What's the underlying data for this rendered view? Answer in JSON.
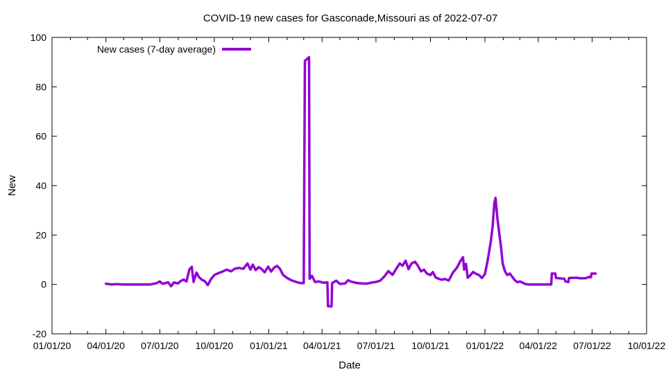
{
  "chart_data": {
    "type": "line",
    "title": "COVID-19 new cases for Gasconade,Missouri as of 2022-07-07",
    "xlabel": "Date",
    "ylabel": "New",
    "xlim": [
      "2020-01-01",
      "2022-10-01"
    ],
    "ylim": [
      -20,
      100
    ],
    "x_ticks": [
      "01/01/20",
      "04/01/20",
      "07/01/20",
      "10/01/20",
      "01/01/21",
      "04/01/21",
      "07/01/21",
      "10/01/21",
      "01/01/22",
      "04/01/22",
      "07/01/22",
      "10/01/22"
    ],
    "y_ticks": [
      -20,
      0,
      20,
      40,
      60,
      80,
      100
    ],
    "grid": false,
    "legend_position": "top-left",
    "color": "#9400d3",
    "series": [
      {
        "name": "New cases (7-day average)",
        "points": [
          [
            "2020-04-01",
            0.3
          ],
          [
            "2020-04-10",
            0.0
          ],
          [
            "2020-04-20",
            0.1
          ],
          [
            "2020-05-01",
            0.0
          ],
          [
            "2020-05-15",
            0.0
          ],
          [
            "2020-06-01",
            0.0
          ],
          [
            "2020-06-15",
            0.0
          ],
          [
            "2020-06-25",
            0.5
          ],
          [
            "2020-07-01",
            1.2
          ],
          [
            "2020-07-05",
            0.3
          ],
          [
            "2020-07-10",
            0.5
          ],
          [
            "2020-07-15",
            0.9
          ],
          [
            "2020-07-20",
            -0.7
          ],
          [
            "2020-07-25",
            0.8
          ],
          [
            "2020-08-01",
            0.4
          ],
          [
            "2020-08-05",
            1.3
          ],
          [
            "2020-08-10",
            2.0
          ],
          [
            "2020-08-15",
            1.2
          ],
          [
            "2020-08-20",
            6.1
          ],
          [
            "2020-08-24",
            7.1
          ],
          [
            "2020-08-27",
            1.0
          ],
          [
            "2020-09-01",
            4.8
          ],
          [
            "2020-09-05",
            3.0
          ],
          [
            "2020-09-10",
            1.9
          ],
          [
            "2020-09-15",
            1.3
          ],
          [
            "2020-09-20",
            -0.3
          ],
          [
            "2020-09-25",
            2.0
          ],
          [
            "2020-10-01",
            3.8
          ],
          [
            "2020-10-08",
            4.6
          ],
          [
            "2020-10-15",
            5.2
          ],
          [
            "2020-10-22",
            6.0
          ],
          [
            "2020-10-29",
            5.3
          ],
          [
            "2020-11-05",
            6.4
          ],
          [
            "2020-11-12",
            6.7
          ],
          [
            "2020-11-19",
            6.3
          ],
          [
            "2020-11-26",
            8.5
          ],
          [
            "2020-12-01",
            6.0
          ],
          [
            "2020-12-05",
            8.0
          ],
          [
            "2020-12-10",
            5.8
          ],
          [
            "2020-12-15",
            7.0
          ],
          [
            "2020-12-20",
            6.2
          ],
          [
            "2020-12-25",
            4.9
          ],
          [
            "2020-12-31",
            7.2
          ],
          [
            "2021-01-05",
            5.2
          ],
          [
            "2021-01-10",
            6.8
          ],
          [
            "2021-01-15",
            7.5
          ],
          [
            "2021-01-20",
            6.3
          ],
          [
            "2021-01-25",
            3.9
          ],
          [
            "2021-02-01",
            2.6
          ],
          [
            "2021-02-08",
            1.7
          ],
          [
            "2021-02-15",
            1.1
          ],
          [
            "2021-02-22",
            0.6
          ],
          [
            "2021-03-01",
            0.5
          ],
          [
            "2021-03-03",
            90.5
          ],
          [
            "2021-03-10",
            92.0
          ],
          [
            "2021-03-11",
            2.3
          ],
          [
            "2021-03-15",
            3.5
          ],
          [
            "2021-03-20",
            1.0
          ],
          [
            "2021-03-27",
            1.2
          ],
          [
            "2021-04-01",
            0.8
          ],
          [
            "2021-04-05",
            0.7
          ],
          [
            "2021-04-10",
            0.9
          ],
          [
            "2021-04-11",
            -8.8
          ],
          [
            "2021-04-17",
            -8.9
          ],
          [
            "2021-04-18",
            0.5
          ],
          [
            "2021-04-25",
            1.5
          ],
          [
            "2021-05-01",
            0.2
          ],
          [
            "2021-05-10",
            0.4
          ],
          [
            "2021-05-15",
            1.7
          ],
          [
            "2021-05-20",
            1.1
          ],
          [
            "2021-06-01",
            0.5
          ],
          [
            "2021-06-15",
            0.3
          ],
          [
            "2021-06-25",
            0.8
          ],
          [
            "2021-07-01",
            1.0
          ],
          [
            "2021-07-08",
            1.5
          ],
          [
            "2021-07-15",
            3.2
          ],
          [
            "2021-07-22",
            5.4
          ],
          [
            "2021-07-29",
            3.9
          ],
          [
            "2021-08-05",
            6.6
          ],
          [
            "2021-08-10",
            8.5
          ],
          [
            "2021-08-15",
            7.6
          ],
          [
            "2021-08-20",
            9.6
          ],
          [
            "2021-08-25",
            6.2
          ],
          [
            "2021-08-30",
            8.5
          ],
          [
            "2021-09-05",
            9.2
          ],
          [
            "2021-09-10",
            7.5
          ],
          [
            "2021-09-15",
            5.3
          ],
          [
            "2021-09-20",
            6.0
          ],
          [
            "2021-09-25",
            4.4
          ],
          [
            "2021-10-01",
            3.8
          ],
          [
            "2021-10-05",
            5.0
          ],
          [
            "2021-10-10",
            2.8
          ],
          [
            "2021-10-15",
            2.3
          ],
          [
            "2021-10-20",
            1.9
          ],
          [
            "2021-10-25",
            2.2
          ],
          [
            "2021-11-01",
            1.6
          ],
          [
            "2021-11-08",
            4.8
          ],
          [
            "2021-11-15",
            6.9
          ],
          [
            "2021-11-20",
            9.2
          ],
          [
            "2021-11-25",
            11.0
          ],
          [
            "2021-11-27",
            6.0
          ],
          [
            "2021-11-30",
            8.3
          ],
          [
            "2021-12-03",
            2.7
          ],
          [
            "2021-12-07",
            3.6
          ],
          [
            "2021-12-12",
            5.0
          ],
          [
            "2021-12-17",
            4.3
          ],
          [
            "2021-12-22",
            3.8
          ],
          [
            "2021-12-27",
            2.6
          ],
          [
            "2022-01-01",
            4.2
          ],
          [
            "2022-01-05",
            8.9
          ],
          [
            "2022-01-08",
            13.0
          ],
          [
            "2022-01-11",
            17.5
          ],
          [
            "2022-01-14",
            23.5
          ],
          [
            "2022-01-17",
            33.0
          ],
          [
            "2022-01-19",
            35.0
          ],
          [
            "2022-01-22",
            27.0
          ],
          [
            "2022-01-25",
            21.0
          ],
          [
            "2022-01-28",
            15.6
          ],
          [
            "2022-01-31",
            8.5
          ],
          [
            "2022-02-04",
            5.2
          ],
          [
            "2022-02-08",
            3.8
          ],
          [
            "2022-02-12",
            4.4
          ],
          [
            "2022-02-16",
            3.2
          ],
          [
            "2022-02-20",
            1.8
          ],
          [
            "2022-02-25",
            0.9
          ],
          [
            "2022-03-01",
            1.2
          ],
          [
            "2022-03-05",
            0.8
          ],
          [
            "2022-03-10",
            0.2
          ],
          [
            "2022-03-15",
            0.0
          ],
          [
            "2022-04-01",
            0.0
          ],
          [
            "2022-04-15",
            0.0
          ],
          [
            "2022-04-23",
            0.0
          ],
          [
            "2022-04-24",
            4.4
          ],
          [
            "2022-04-30",
            4.4
          ],
          [
            "2022-05-01",
            2.6
          ],
          [
            "2022-05-15",
            2.3
          ],
          [
            "2022-05-17",
            1.2
          ],
          [
            "2022-05-22",
            1.0
          ],
          [
            "2022-05-23",
            2.6
          ],
          [
            "2022-06-05",
            2.7
          ],
          [
            "2022-06-10",
            2.5
          ],
          [
            "2022-06-20",
            2.5
          ],
          [
            "2022-06-25",
            3.0
          ],
          [
            "2022-06-29",
            2.9
          ],
          [
            "2022-06-30",
            4.4
          ],
          [
            "2022-07-07",
            4.4
          ]
        ]
      }
    ]
  }
}
